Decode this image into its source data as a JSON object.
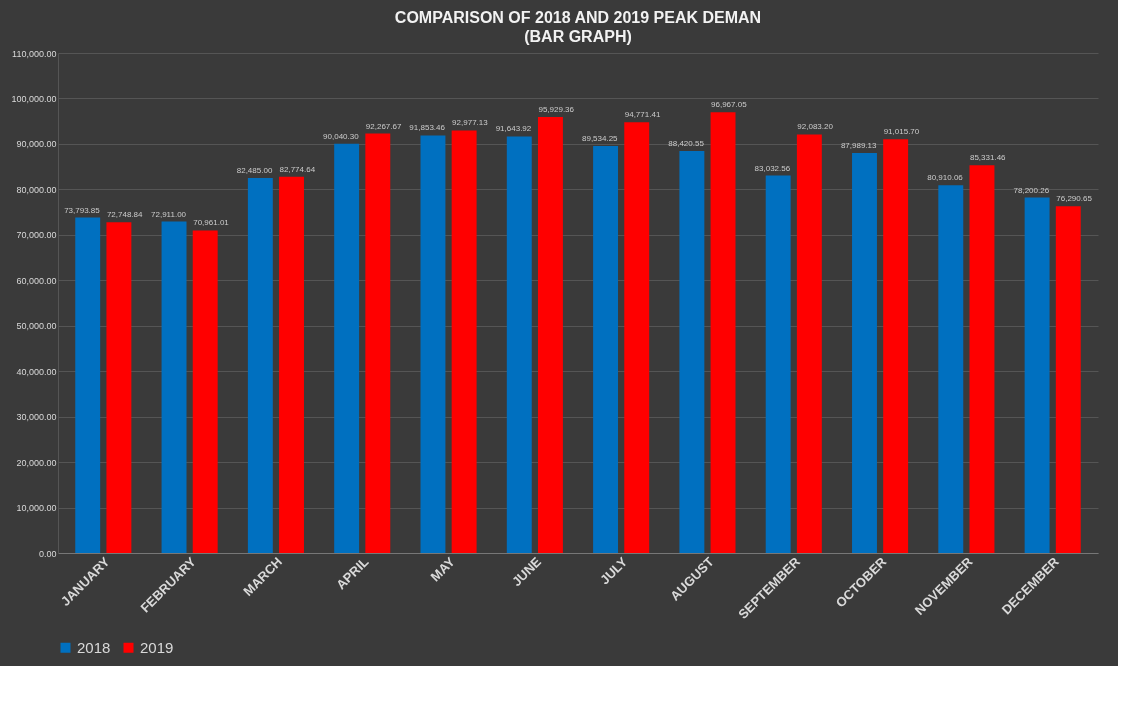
{
  "chart_data": {
    "type": "bar",
    "title": "COMPARISON OF 2018 AND 2019 PEAK DEMAN",
    "subtitle": "(BAR GRAPH)",
    "categories": [
      "JANUARY",
      "FEBRUARY",
      "MARCH",
      "APRIL",
      "MAY",
      "JUNE",
      "JULY",
      "AUGUST",
      "SEPTEMBER",
      "OCTOBER",
      "NOVEMBER",
      "DECEMBER"
    ],
    "series": [
      {
        "name": "2018",
        "color": "#0070c0",
        "values": [
          73793.85,
          72911.0,
          82485.0,
          90040.3,
          91853.46,
          91643.92,
          89534.25,
          88420.55,
          83032.56,
          87989.13,
          80910.06,
          78200.26
        ],
        "value_labels": [
          "73,793.85",
          "72,911.00",
          "82,485.00",
          "90,040.30",
          "91,853.46",
          "91,643.92",
          "89,534.25",
          "88,420.55",
          "83,032.56",
          "87,989.13",
          "80,910.06",
          "78,200.26"
        ]
      },
      {
        "name": "2019",
        "color": "#ff0000",
        "values": [
          72748.84,
          70961.01,
          82774.64,
          92267.67,
          92977.13,
          95929.36,
          94771.41,
          96967.05,
          92083.2,
          91015.7,
          85331.46,
          76290.65
        ],
        "value_labels": [
          "72,748.84",
          "70,961.01",
          "82,774.64",
          "92,267.67",
          "92,977.13",
          "95,929.36",
          "94,771.41",
          "96,967.05",
          "92,083.20",
          "91,015.70",
          "85,331.46",
          "76,290.65"
        ]
      }
    ],
    "ylim": [
      0,
      110000
    ],
    "yticks": [
      {
        "value": 0,
        "label": "0.00"
      },
      {
        "value": 10000,
        "label": "10,000.00"
      },
      {
        "value": 20000,
        "label": "20,000.00"
      },
      {
        "value": 30000,
        "label": "30,000.00"
      },
      {
        "value": 40000,
        "label": "40,000.00"
      },
      {
        "value": 50000,
        "label": "50,000.00"
      },
      {
        "value": 60000,
        "label": "60,000.00"
      },
      {
        "value": 70000,
        "label": "70,000.00"
      },
      {
        "value": 80000,
        "label": "80,000.00"
      },
      {
        "value": 90000,
        "label": "90,000.00"
      },
      {
        "value": 100000,
        "label": "100,000.00"
      },
      {
        "value": 110000,
        "label": "110,000.00"
      }
    ],
    "grid": "y",
    "legend": "bottom"
  }
}
